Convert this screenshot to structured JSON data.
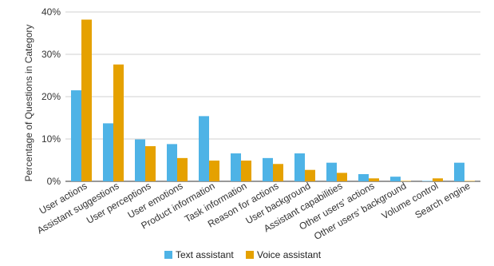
{
  "chart_data": {
    "type": "bar",
    "xlabel": "",
    "ylabel": "Percentage of Questions in Category",
    "ylim": [
      0,
      40
    ],
    "yticks": [
      "0%",
      "10%",
      "20%",
      "30%",
      "40%"
    ],
    "grid": true,
    "legend_position": "bottom",
    "categories": [
      "User actions",
      "Assistant suggestions",
      "User perceptions",
      "User emotions",
      "Product information",
      "Task information",
      "Reason for actions",
      "User background",
      "Assistant capabilities",
      "Other users' actions",
      "Other users' background",
      "Volume control",
      "Search engine"
    ],
    "series": [
      {
        "name": "Text assistant",
        "color": "#4EB3E6",
        "values": [
          21.5,
          13.7,
          9.9,
          8.8,
          15.4,
          6.6,
          5.5,
          6.6,
          4.4,
          1.7,
          1.1,
          0.1,
          4.4
        ]
      },
      {
        "name": "Voice assistant",
        "color": "#E5A100",
        "values": [
          38.2,
          27.6,
          8.3,
          5.5,
          4.9,
          4.9,
          4.1,
          2.7,
          2.0,
          0.7,
          0.1,
          0.7,
          0.1
        ]
      }
    ]
  }
}
